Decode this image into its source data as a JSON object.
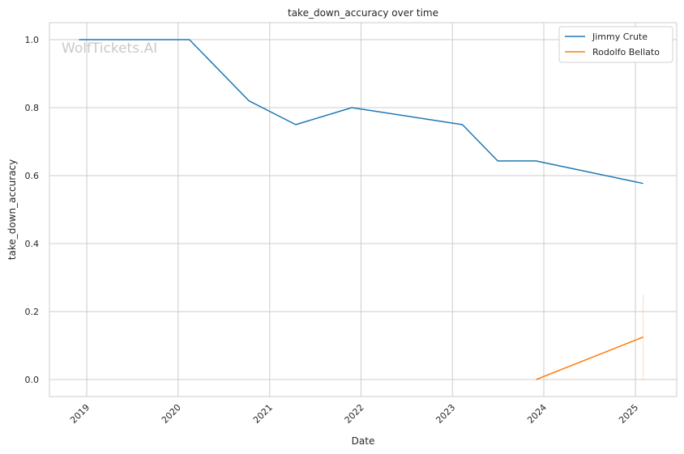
{
  "chart_data": {
    "type": "line",
    "title": "take_down_accuracy over time",
    "xlabel": "Date",
    "ylabel": "take_down_accuracy",
    "xlim": [
      "2018-08-05",
      "2025-06-15"
    ],
    "ylim": [
      -0.05,
      1.05
    ],
    "x_ticks": [
      "2019",
      "2020",
      "2021",
      "2022",
      "2023",
      "2024",
      "2025"
    ],
    "y_ticks": [
      "0.0",
      "0.2",
      "0.4",
      "0.6",
      "0.8",
      "1.0"
    ],
    "grid": true,
    "legend_position": "top-right",
    "watermark": "WolfTickets.AI",
    "series": [
      {
        "name": "Jimmy Crute",
        "color": "#1f77b4",
        "x": [
          "2018-12-01",
          "2020-02-15",
          "2020-10-10",
          "2021-04-15",
          "2021-11-25",
          "2023-02-10",
          "2023-07-01",
          "2023-12-01",
          "2025-02-01"
        ],
        "y": [
          1.0,
          1.0,
          0.82,
          0.75,
          0.8,
          0.75,
          0.643,
          0.643,
          0.577
        ]
      },
      {
        "name": "Rodolfo Bellato",
        "color": "#ff7f0e",
        "x": [
          "2023-12-01",
          "2025-02-01"
        ],
        "y": [
          0.0,
          0.125
        ],
        "error_band": {
          "x": "2025-02-01",
          "low": 0.0,
          "high": 0.25
        }
      }
    ]
  }
}
